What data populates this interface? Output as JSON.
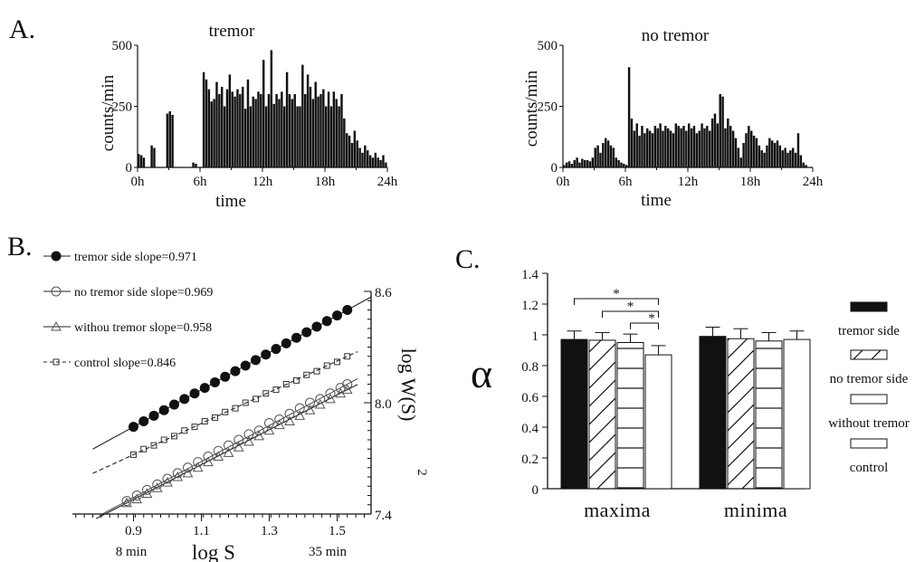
{
  "chart_data": [
    {
      "panel": "A.",
      "type": "bar",
      "title": "tremor",
      "xlabel": "time",
      "ylabel": "counts/min",
      "xtick_labels": [
        "0h",
        "6h",
        "12h",
        "18h",
        "24h"
      ],
      "ytick_labels": [
        "0",
        "250",
        "500"
      ],
      "xlim": [
        0,
        24
      ],
      "ylim": [
        0,
        500
      ],
      "x_step_hours": 0.25,
      "values": [
        55,
        50,
        40,
        0,
        0,
        90,
        80,
        0,
        0,
        0,
        0,
        220,
        230,
        215,
        0,
        0,
        0,
        0,
        0,
        0,
        0,
        20,
        15,
        0,
        0,
        390,
        360,
        320,
        270,
        280,
        350,
        300,
        330,
        250,
        320,
        380,
        310,
        290,
        320,
        300,
        330,
        240,
        360,
        250,
        290,
        280,
        310,
        300,
        440,
        250,
        300,
        480,
        260,
        300,
        280,
        310,
        250,
        390,
        300,
        280,
        300,
        250,
        250,
        420,
        300,
        380,
        330,
        280,
        350,
        290,
        300,
        320,
        250,
        310,
        250,
        310,
        280,
        250,
        300,
        200,
        140,
        130,
        100,
        150,
        110,
        80,
        60,
        90,
        70,
        50,
        40,
        60,
        40,
        30,
        50,
        20,
        0
      ]
    },
    {
      "panel": "",
      "type": "bar",
      "title": "no tremor",
      "xlabel": "time",
      "ylabel": "counts/min",
      "xtick_labels": [
        "0h",
        "6h",
        "12h",
        "18h",
        "24h"
      ],
      "ytick_labels": [
        "0",
        "250",
        "500"
      ],
      "xlim": [
        0,
        24
      ],
      "ylim": [
        0,
        500
      ],
      "x_step_hours": 0.25,
      "values": [
        10,
        20,
        25,
        15,
        30,
        40,
        20,
        35,
        30,
        30,
        25,
        40,
        80,
        90,
        60,
        100,
        120,
        110,
        90,
        80,
        40,
        30,
        20,
        15,
        10,
        410,
        200,
        150,
        180,
        130,
        170,
        140,
        160,
        150,
        140,
        170,
        160,
        180,
        150,
        170,
        160,
        150,
        140,
        180,
        170,
        160,
        170,
        150,
        180,
        160,
        170,
        140,
        150,
        180,
        160,
        170,
        150,
        200,
        220,
        180,
        300,
        290,
        160,
        200,
        170,
        150,
        120,
        80,
        40,
        100,
        140,
        170,
        150,
        130,
        120,
        90,
        70,
        60,
        90,
        120,
        110,
        100,
        110,
        90,
        70,
        80,
        60,
        70,
        80,
        60,
        140,
        50,
        20,
        10,
        0,
        0
      ]
    },
    {
      "panel": "B.",
      "type": "scatter",
      "xlabel": "log S",
      "ylabel": "log W(S)",
      "ylabel_superscript": "2",
      "xtick_labels": [
        "0.9",
        "1.1",
        "1.3",
        "1.5"
      ],
      "ytick_labels": [
        "7.4",
        "8.0",
        "8.6"
      ],
      "x_extra_labels": [
        "8 min",
        "35 min"
      ],
      "xlim": [
        0.72,
        1.6
      ],
      "ylim": [
        7.4,
        8.6
      ],
      "series": [
        {
          "name": "tremor side slope=0.971",
          "marker": "filled-circle",
          "line": "solid",
          "slope": 0.971,
          "intercept": 7.0,
          "fit_x": [
            0.78,
            1.6
          ],
          "points_x": [
            0.9,
            0.93,
            0.96,
            0.99,
            1.02,
            1.05,
            1.08,
            1.11,
            1.14,
            1.17,
            1.2,
            1.23,
            1.26,
            1.29,
            1.32,
            1.35,
            1.38,
            1.41,
            1.44,
            1.47,
            1.5,
            1.53
          ],
          "points_y": [
            7.87,
            7.9,
            7.93,
            7.96,
            7.99,
            8.02,
            8.05,
            8.08,
            8.11,
            8.14,
            8.17,
            8.2,
            8.23,
            8.26,
            8.29,
            8.32,
            8.35,
            8.38,
            8.41,
            8.44,
            8.47,
            8.5
          ]
        },
        {
          "name": "no tremor side slope=0.969",
          "marker": "open-circle",
          "line": "thin",
          "slope": 0.969,
          "intercept": 6.6,
          "fit_x": [
            0.8,
            1.56
          ],
          "points_x": [
            0.88,
            0.91,
            0.94,
            0.97,
            1.0,
            1.03,
            1.06,
            1.09,
            1.12,
            1.15,
            1.18,
            1.21,
            1.24,
            1.27,
            1.3,
            1.33,
            1.36,
            1.39,
            1.42,
            1.45,
            1.48,
            1.51,
            1.53
          ],
          "points_y": [
            7.47,
            7.5,
            7.53,
            7.56,
            7.59,
            7.62,
            7.65,
            7.68,
            7.71,
            7.74,
            7.77,
            7.8,
            7.83,
            7.85,
            7.89,
            7.91,
            7.94,
            7.97,
            8.0,
            8.02,
            8.05,
            8.08,
            8.1
          ]
        },
        {
          "name": "withou tremor slope=0.958",
          "marker": "open-triangle",
          "line": "solid",
          "slope": 0.958,
          "intercept": 6.6,
          "fit_x": [
            0.79,
            1.56
          ],
          "points_x": [
            0.88,
            0.91,
            0.94,
            0.97,
            1.0,
            1.03,
            1.06,
            1.09,
            1.12,
            1.15,
            1.18,
            1.21,
            1.24,
            1.27,
            1.3,
            1.33,
            1.36,
            1.39,
            1.42,
            1.45,
            1.48,
            1.51,
            1.53
          ],
          "points_y": [
            7.46,
            7.48,
            7.51,
            7.54,
            7.57,
            7.6,
            7.62,
            7.65,
            7.68,
            7.71,
            7.73,
            7.76,
            7.79,
            7.82,
            7.85,
            7.88,
            7.9,
            7.93,
            7.96,
            7.99,
            8.02,
            8.05,
            8.07
          ]
        },
        {
          "name": "control slope=0.846",
          "marker": "open-square",
          "line": "dashed",
          "slope": 0.846,
          "intercept": 7.0,
          "fit_x": [
            0.78,
            1.56
          ],
          "points_x": [
            0.9,
            0.93,
            0.96,
            0.99,
            1.02,
            1.05,
            1.08,
            1.11,
            1.14,
            1.17,
            1.2,
            1.23,
            1.26,
            1.29,
            1.32,
            1.35,
            1.38,
            1.41,
            1.44,
            1.47,
            1.5,
            1.53
          ],
          "points_y": [
            7.72,
            7.75,
            7.77,
            7.8,
            7.82,
            7.85,
            7.87,
            7.9,
            7.92,
            7.95,
            7.97,
            8.0,
            8.02,
            8.05,
            8.07,
            8.1,
            8.12,
            8.15,
            8.17,
            8.2,
            8.22,
            8.25
          ]
        }
      ]
    },
    {
      "panel": "C.",
      "type": "bar",
      "ylabel": "α",
      "categories": [
        "maxima",
        "minima"
      ],
      "ytick_labels": [
        "0",
        "0.2",
        "0.4",
        "0.6",
        "0.8",
        "1",
        "1.2",
        "1.4"
      ],
      "ylim": [
        0,
        1.4
      ],
      "series": [
        {
          "name": "tremor side",
          "fill": "solid",
          "values": [
            0.97,
            0.99
          ],
          "errors": [
            0.055,
            0.06
          ]
        },
        {
          "name": "no tremor side",
          "fill": "diagonal",
          "values": [
            0.965,
            0.975
          ],
          "errors": [
            0.05,
            0.065
          ]
        },
        {
          "name": "without tremor",
          "fill": "horizontal",
          "values": [
            0.95,
            0.96
          ],
          "errors": [
            0.055,
            0.055
          ]
        },
        {
          "name": "control",
          "fill": "empty",
          "values": [
            0.87,
            0.97
          ],
          "errors": [
            0.06,
            0.055
          ]
        }
      ],
      "significance": [
        {
          "label": "*",
          "from": 0,
          "to": 3
        },
        {
          "label": "*",
          "from": 1,
          "to": 3
        },
        {
          "label": "*",
          "from": 2,
          "to": 3
        }
      ],
      "legend_labels": [
        "tremor side",
        "no tremor side",
        "without tremor",
        "control"
      ]
    }
  ]
}
